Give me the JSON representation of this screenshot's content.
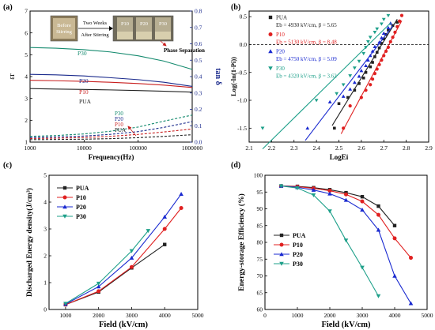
{
  "chart_data": [
    {
      "panel": "(a)",
      "type": "line",
      "xlabel": "Frequency(Hz)",
      "ylabel_left": "εr",
      "ylabel_right": "tan δ",
      "xscale": "log",
      "xlim": [
        1000,
        1000000
      ],
      "xticks": [
        "1000",
        "10000",
        "100000",
        "1000000"
      ],
      "ylim_left": [
        1,
        7
      ],
      "yticks_left": [
        "1",
        "2",
        "3",
        "4",
        "5",
        "6",
        "7"
      ],
      "ylim_right": [
        0.0,
        0.8
      ],
      "yticks_right": [
        "0.0",
        "0.1",
        "0.2",
        "0.3",
        "0.4",
        "0.5",
        "0.6",
        "0.7",
        "0.8"
      ],
      "x": [
        1000,
        3000,
        10000,
        30000,
        100000,
        300000,
        1000000
      ],
      "series": [
        {
          "name": "PUA",
          "axis": "left",
          "color": "#222222",
          "values": [
            3.45,
            3.43,
            3.41,
            3.39,
            3.36,
            3.33,
            3.29
          ]
        },
        {
          "name": "P10",
          "axis": "left",
          "color": "#c81e1e",
          "values": [
            3.83,
            3.81,
            3.78,
            3.74,
            3.68,
            3.61,
            3.5
          ]
        },
        {
          "name": "P20",
          "axis": "left",
          "color": "#1a2a8c",
          "values": [
            4.1,
            4.08,
            4.03,
            3.95,
            3.86,
            3.74,
            3.55
          ]
        },
        {
          "name": "P30",
          "axis": "left",
          "color": "#148a6e",
          "values": [
            5.33,
            5.3,
            5.23,
            5.13,
            4.95,
            4.71,
            4.33
          ]
        },
        {
          "name": "PUA",
          "axis": "right",
          "color": "#222222",
          "dashed": true,
          "values": [
            0.015,
            0.016,
            0.018,
            0.021,
            0.027,
            0.035,
            0.045
          ]
        },
        {
          "name": "P10",
          "axis": "right",
          "color": "#c81e1e",
          "dashed": true,
          "values": [
            0.022,
            0.024,
            0.028,
            0.035,
            0.047,
            0.062,
            0.08
          ]
        },
        {
          "name": "P20",
          "axis": "right",
          "color": "#1a2a8c",
          "dashed": true,
          "values": [
            0.028,
            0.031,
            0.037,
            0.047,
            0.064,
            0.09,
            0.125
          ]
        },
        {
          "name": "P30",
          "axis": "right",
          "color": "#148a6e",
          "dashed": true,
          "values": [
            0.035,
            0.04,
            0.05,
            0.066,
            0.092,
            0.128,
            0.165
          ]
        }
      ],
      "annotations": {
        "inset_labels": [
          "Before Stirring",
          "P10",
          "P20",
          "P30"
        ],
        "arrow_text": "Two Weeks After Stirring",
        "phase_text": "Phase Separation",
        "curve_labels_solid": [
          "P30",
          "P20",
          "P10",
          "PUA"
        ],
        "curve_labels_dashed": [
          "P30",
          "P20",
          "P10",
          "PUA"
        ]
      }
    },
    {
      "panel": "(b)",
      "type": "scatter",
      "xlabel": "LogEi",
      "ylabel": "Log(-ln(1-Pi))",
      "xlim": [
        2.1,
        2.9
      ],
      "xticks": [
        "2.1",
        "2.2",
        "2.3",
        "2.4",
        "2.5",
        "2.6",
        "2.7",
        "2.8",
        "2.9"
      ],
      "ylim": [
        -1.75,
        0.6
      ],
      "yticks": [
        "-1.5",
        "-1.0",
        "-0.5",
        "0.0",
        "0.5"
      ],
      "series": [
        {
          "name": "PUA",
          "marker": "square",
          "color": "#222222",
          "legend_text": "Eb = 4930 kV/cm, β = 5.65",
          "fit": {
            "x1": 2.47,
            "x2": 2.76
          },
          "points": [
            [
              2.48,
              -1.5
            ],
            [
              2.5,
              -1.06
            ],
            [
              2.54,
              -0.95
            ],
            [
              2.57,
              -0.82
            ],
            [
              2.59,
              -0.7
            ],
            [
              2.61,
              -0.6
            ],
            [
              2.62,
              -0.5
            ],
            [
              2.64,
              -0.4
            ],
            [
              2.65,
              -0.32
            ],
            [
              2.66,
              -0.22
            ],
            [
              2.67,
              -0.14
            ],
            [
              2.68,
              -0.06
            ],
            [
              2.69,
              0.02
            ],
            [
              2.7,
              0.1
            ],
            [
              2.71,
              0.18
            ],
            [
              2.72,
              0.26
            ],
            [
              2.74,
              0.34
            ],
            [
              2.76,
              0.4
            ]
          ]
        },
        {
          "name": "P10",
          "marker": "circle",
          "color": "#e02020",
          "legend_text": "Eb = 5130 kV/cm, β = 8.48",
          "fit": {
            "x1": 2.51,
            "x2": 2.78
          },
          "points": [
            [
              2.52,
              -1.5
            ],
            [
              2.55,
              -1.1
            ],
            [
              2.6,
              -0.95
            ],
            [
              2.62,
              -0.82
            ],
            [
              2.64,
              -0.72
            ],
            [
              2.65,
              -0.62
            ],
            [
              2.66,
              -0.52
            ],
            [
              2.67,
              -0.44
            ],
            [
              2.68,
              -0.36
            ],
            [
              2.69,
              -0.28
            ],
            [
              2.7,
              -0.2
            ],
            [
              2.71,
              -0.12
            ],
            [
              2.72,
              -0.05
            ],
            [
              2.73,
              0.05
            ],
            [
              2.74,
              0.13
            ],
            [
              2.75,
              0.22
            ],
            [
              2.76,
              0.32
            ],
            [
              2.77,
              0.42
            ],
            [
              2.78,
              0.52
            ]
          ]
        },
        {
          "name": "P20",
          "marker": "triangle-up",
          "color": "#1a2ad0",
          "legend_text": "Eb = 4750 kV/cm, β = 5.09",
          "fit": {
            "x1": 2.35,
            "x2": 2.74
          },
          "points": [
            [
              2.36,
              -1.5
            ],
            [
              2.46,
              -1.03
            ],
            [
              2.52,
              -0.93
            ],
            [
              2.55,
              -0.8
            ],
            [
              2.57,
              -0.68
            ],
            [
              2.59,
              -0.57
            ],
            [
              2.6,
              -0.47
            ],
            [
              2.62,
              -0.38
            ],
            [
              2.63,
              -0.28
            ],
            [
              2.64,
              -0.2
            ],
            [
              2.65,
              -0.12
            ],
            [
              2.66,
              -0.04
            ],
            [
              2.68,
              0.04
            ],
            [
              2.69,
              0.12
            ],
            [
              2.7,
              0.2
            ],
            [
              2.72,
              0.3
            ],
            [
              2.73,
              0.38
            ]
          ]
        },
        {
          "name": "P30",
          "marker": "triangle-down",
          "color": "#1ea08a",
          "legend_text": "Eb = 4320 kV/cm, β = 3.62",
          "fit": {
            "x1": 2.16,
            "x2": 2.73
          },
          "points": [
            [
              2.16,
              -1.5
            ],
            [
              2.4,
              -1.0
            ],
            [
              2.49,
              -0.88
            ],
            [
              2.52,
              -0.72
            ],
            [
              2.55,
              -0.56
            ],
            [
              2.57,
              -0.42
            ],
            [
              2.59,
              -0.3
            ],
            [
              2.61,
              -0.16
            ],
            [
              2.62,
              -0.05
            ],
            [
              2.63,
              0.05
            ],
            [
              2.64,
              0.13
            ],
            [
              2.66,
              0.22
            ],
            [
              2.67,
              0.28
            ],
            [
              2.69,
              0.37
            ],
            [
              2.7,
              0.45
            ],
            [
              2.72,
              0.52
            ]
          ]
        }
      ]
    },
    {
      "panel": "(c)",
      "type": "line",
      "xlabel": "Field (kV/cm)",
      "ylabel": "Discharged Energy density(J/cm³)",
      "xlim": [
        500,
        5000
      ],
      "xticks": [
        "1000",
        "2000",
        "3000",
        "4000",
        "5000"
      ],
      "ylim": [
        0,
        5
      ],
      "yticks": [
        "0",
        "1",
        "2",
        "3",
        "4",
        "5"
      ],
      "series": [
        {
          "name": "PUA",
          "marker": "square",
          "color": "#222222",
          "x": [
            1000,
            2000,
            3000,
            4000
          ],
          "values": [
            0.18,
            0.65,
            1.55,
            2.42
          ]
        },
        {
          "name": "P10",
          "marker": "circle",
          "color": "#e02020",
          "x": [
            1000,
            2000,
            3000,
            4000,
            4500
          ],
          "values": [
            0.18,
            0.68,
            1.58,
            3.0,
            3.78
          ]
        },
        {
          "name": "P20",
          "marker": "triangle-up",
          "color": "#1a2ad0",
          "x": [
            1000,
            2000,
            3000,
            4000,
            4500
          ],
          "values": [
            0.2,
            0.85,
            1.92,
            3.45,
            4.3
          ]
        },
        {
          "name": "P30",
          "marker": "triangle-down",
          "color": "#1ea08a",
          "x": [
            1000,
            2000,
            3000,
            3500
          ],
          "values": [
            0.22,
            0.97,
            2.18,
            2.93
          ]
        }
      ]
    },
    {
      "panel": "(d)",
      "type": "line",
      "xlabel": "Field (kV/cm)",
      "ylabel": "Energy-storage Efficiency (%)",
      "xlim": [
        0,
        5000
      ],
      "xticks": [
        "0",
        "1000",
        "2000",
        "3000",
        "4000",
        "5000"
      ],
      "ylim": [
        60,
        100
      ],
      "yticks": [
        "60",
        "65",
        "70",
        "75",
        "80",
        "85",
        "90",
        "95",
        "100"
      ],
      "series": [
        {
          "name": "PUA",
          "marker": "square",
          "color": "#222222",
          "x": [
            500,
            1000,
            1500,
            2000,
            2500,
            3000,
            3500,
            4000
          ],
          "values": [
            96.8,
            96.7,
            96.3,
            95.7,
            94.8,
            93.6,
            90.8,
            85.0
          ]
        },
        {
          "name": "P10",
          "marker": "circle",
          "color": "#e02020",
          "x": [
            500,
            1000,
            1500,
            2000,
            2500,
            3000,
            3500,
            4000,
            4500
          ],
          "values": [
            96.8,
            96.6,
            96.1,
            95.4,
            94.3,
            92.2,
            88.2,
            81.2,
            75.4
          ]
        },
        {
          "name": "P20",
          "marker": "triangle-up",
          "color": "#1a2ad0",
          "x": [
            500,
            1000,
            1500,
            2000,
            2500,
            3000,
            3500,
            4000,
            4500
          ],
          "values": [
            96.8,
            96.4,
            95.6,
            94.5,
            92.6,
            89.7,
            83.7,
            70.0,
            61.8
          ]
        },
        {
          "name": "P30",
          "marker": "triangle-down",
          "color": "#1ea08a",
          "x": [
            500,
            1000,
            1500,
            2000,
            2500,
            3000,
            3500
          ],
          "values": [
            96.8,
            96.2,
            94.1,
            89.3,
            80.6,
            72.5,
            64.0
          ]
        }
      ]
    }
  ]
}
